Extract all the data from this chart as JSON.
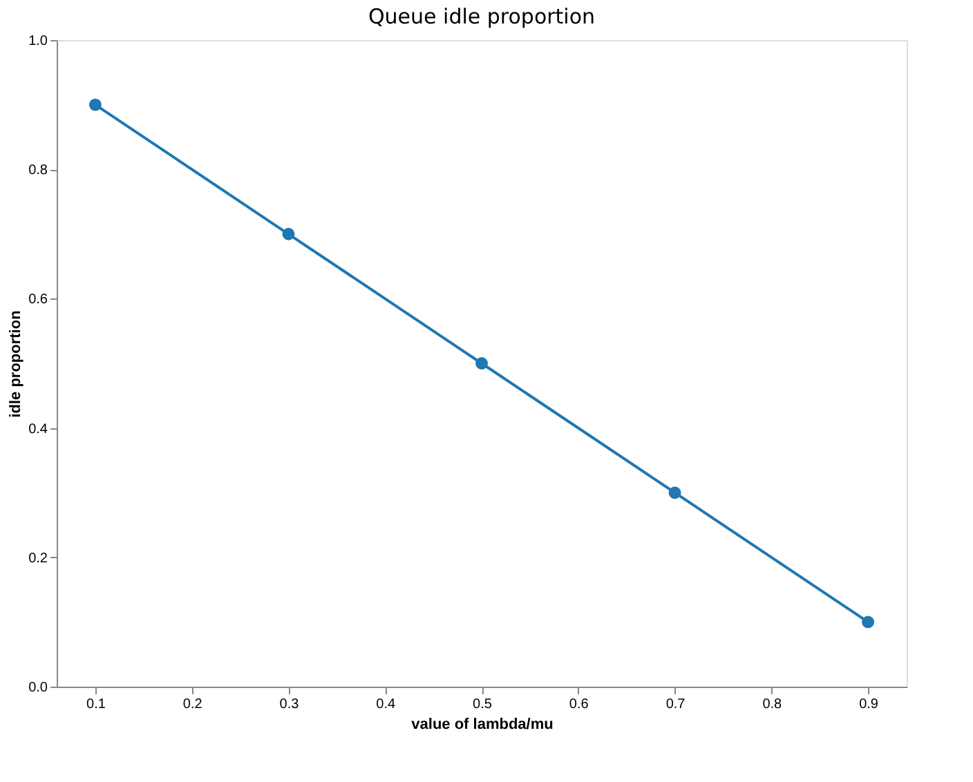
{
  "chart_data": {
    "type": "line",
    "title": "Queue idle proportion",
    "xlabel": "value of lambda/mu",
    "ylabel": "idle proportion",
    "x": [
      0.1,
      0.3,
      0.5,
      0.7,
      0.9
    ],
    "series": [
      {
        "color": "#1f77b4",
        "values": [
          0.9,
          0.7,
          0.5,
          0.3,
          0.1
        ]
      }
    ],
    "xlim": [
      0.06,
      0.94
    ],
    "xticks": [
      0.1,
      0.2,
      0.3,
      0.4,
      0.5,
      0.6,
      0.7,
      0.8,
      0.9
    ],
    "ylim": [
      0,
      1
    ],
    "yticks": [
      {
        "value": 0,
        "label": "0.0"
      },
      0.2,
      0.4,
      0.6,
      0.8,
      {
        "value": 1,
        "label": "1.0"
      }
    ],
    "grid": false,
    "marker": "circle",
    "line_style": "solid"
  }
}
